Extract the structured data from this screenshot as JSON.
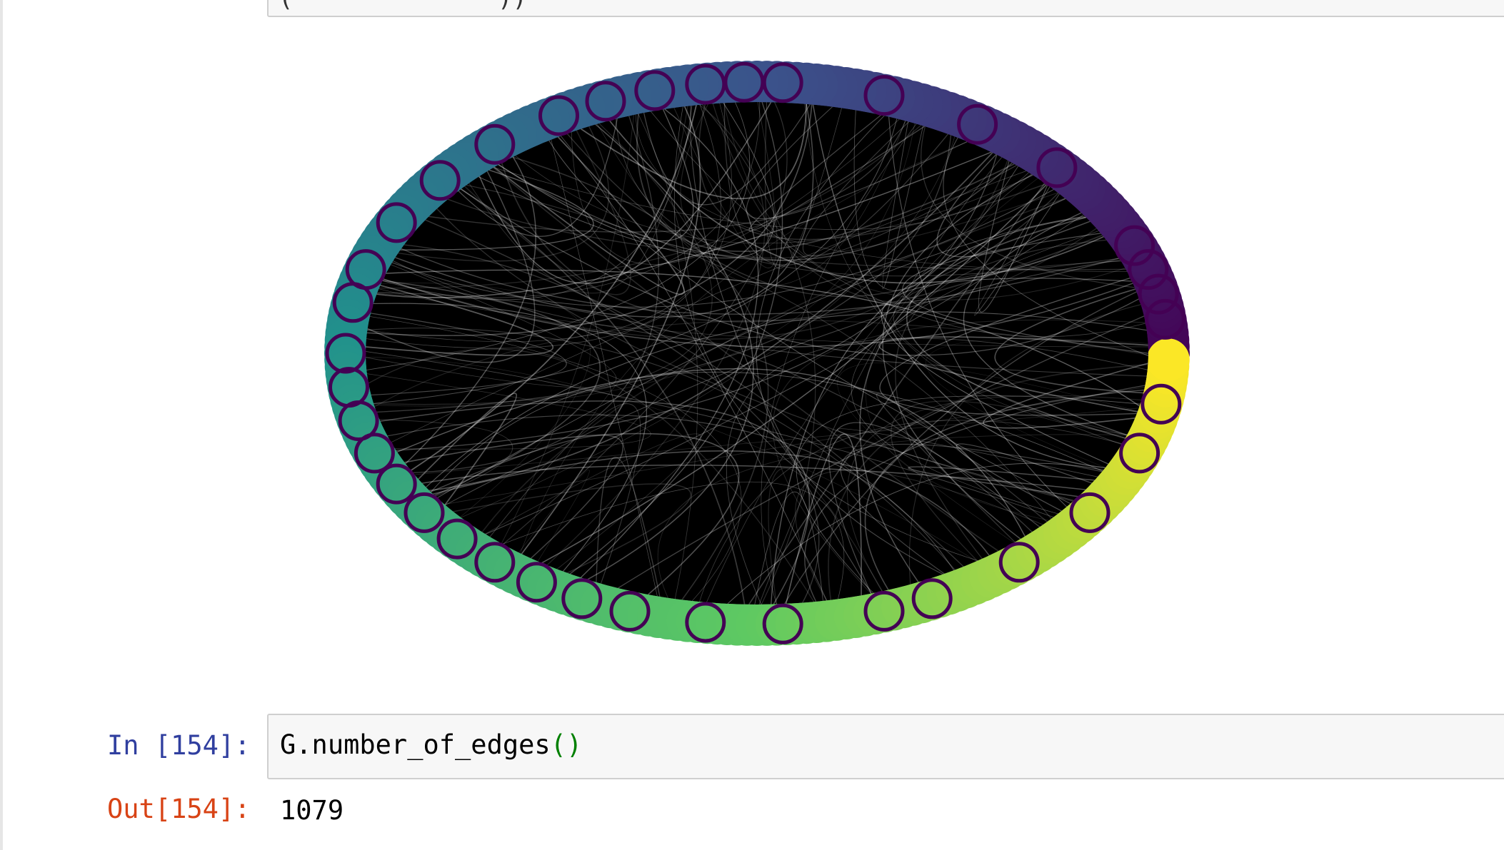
{
  "previous_cell": {
    "code_fragment": "(              ))"
  },
  "graph": {
    "colormap": [
      "#440154",
      "#3b528b",
      "#21918c",
      "#5ec962",
      "#fde725"
    ],
    "edge_color": "#000000",
    "node_marker_color": "#440154"
  },
  "cell_154": {
    "in_prompt": "In [154]:",
    "code_main": "G.number_of_edges",
    "code_parens": "()",
    "out_prompt": "Out[154]:",
    "output": "1079"
  }
}
